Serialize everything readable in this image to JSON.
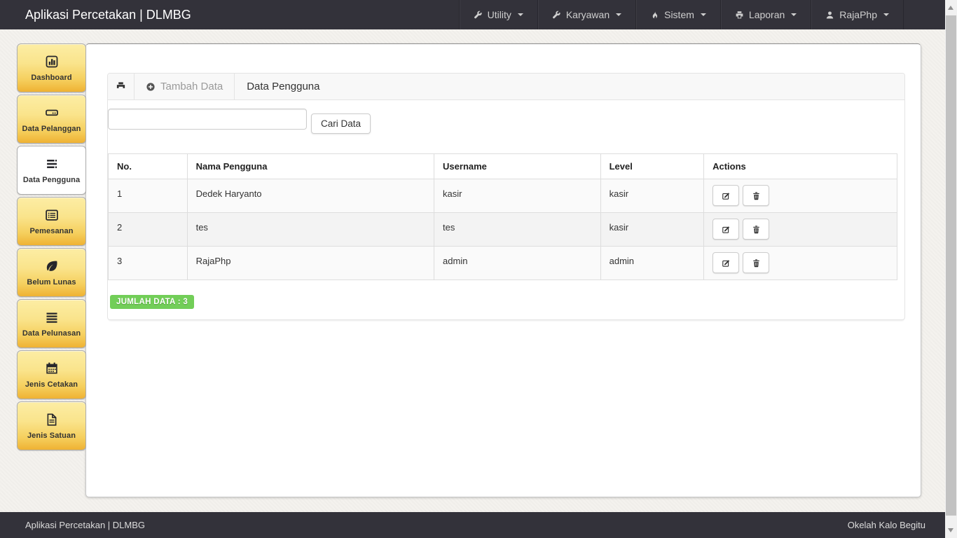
{
  "navbar": {
    "brand": "Aplikasi Percetakan | DLMBG",
    "menus": [
      {
        "label": "Utility",
        "icon": "wrench-icon"
      },
      {
        "label": "Karyawan",
        "icon": "wrench-icon"
      },
      {
        "label": "Sistem",
        "icon": "fire-icon"
      },
      {
        "label": "Laporan",
        "icon": "print-icon"
      },
      {
        "label": "RajaPhp",
        "icon": "user-icon"
      }
    ]
  },
  "sidebar": {
    "items": [
      {
        "label": "Dashboard",
        "icon": "bar-chart-icon",
        "active": false
      },
      {
        "label": "Data Pelanggan",
        "icon": "hdd-icon",
        "active": false
      },
      {
        "label": "Data Pengguna",
        "icon": "tasks-icon",
        "active": true
      },
      {
        "label": "Pemesanan",
        "icon": "list-alt-icon",
        "active": false
      },
      {
        "label": "Belum Lunas",
        "icon": "leaf-icon",
        "active": false
      },
      {
        "label": "Data Pelunasan",
        "icon": "align-justify-icon",
        "active": false
      },
      {
        "label": "Jenis Cetakan",
        "icon": "calendar-icon",
        "active": false
      },
      {
        "label": "Jenis Satuan",
        "icon": "file-icon",
        "active": false
      }
    ]
  },
  "panel": {
    "heading_icon": "printer-icon",
    "add_button_label": "Tambah Data",
    "title": "Data Pengguna",
    "search": {
      "value": "",
      "placeholder": "",
      "button_label": "Cari Data"
    },
    "table": {
      "headers": [
        "No.",
        "Nama Pengguna",
        "Username",
        "Level",
        "Actions"
      ],
      "rows": [
        {
          "no": "1",
          "nama": "Dedek Haryanto",
          "username": "kasir",
          "level": "kasir"
        },
        {
          "no": "2",
          "nama": "tes",
          "username": "tes",
          "level": "kasir"
        },
        {
          "no": "3",
          "nama": "RajaPhp",
          "username": "admin",
          "level": "admin"
        }
      ],
      "row_action_icons": [
        "edit-icon",
        "trash-icon"
      ]
    },
    "count_badge": "JUMLAH DATA : 3"
  },
  "footer": {
    "left": "Aplikasi Percetakan | DLMBG",
    "right": "Okelah Kalo Begitu"
  },
  "colors": {
    "navbar_bg": "#33323a",
    "sidebar_yellow_top": "#fceda4",
    "sidebar_yellow_bottom": "#efb233",
    "badge_green": "#72ce58",
    "panel_heading_bg": "#f8f8f8",
    "table_border": "#dddddd"
  }
}
